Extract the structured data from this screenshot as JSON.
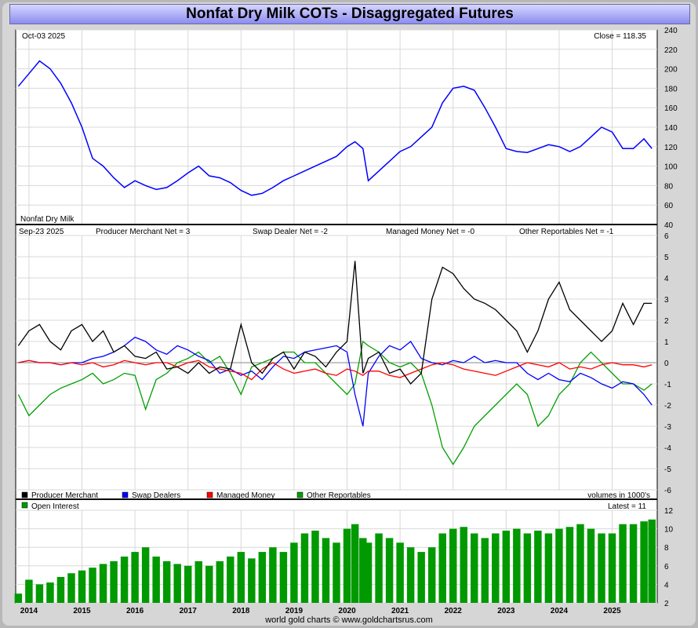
{
  "title": "Nonfat Dry Milk COTs - Disaggregated Futures",
  "footer": "world gold charts © www.goldchartsrus.com",
  "x_axis_years": [
    "2014",
    "2015",
    "2016",
    "2017",
    "2018",
    "2019",
    "2020",
    "2021",
    "2022",
    "2023",
    "2024",
    "2025"
  ],
  "colors": {
    "price": "#0000ff",
    "producer": "#000000",
    "swap": "#0000ff",
    "managed": "#ff0000",
    "other": "#00a000",
    "oi": "#009900"
  },
  "chart_data": [
    {
      "type": "line",
      "name": "price",
      "date_label": "Oct-03  2025",
      "close_label": "Close = 118.35",
      "series_label": "Nonfat Dry Milk",
      "ylim": [
        40,
        240
      ],
      "yticks": [
        40,
        60,
        80,
        100,
        120,
        140,
        160,
        180,
        200,
        220,
        240
      ],
      "x": [
        2013.8,
        2014.0,
        2014.2,
        2014.4,
        2014.6,
        2014.8,
        2015.0,
        2015.2,
        2015.4,
        2015.6,
        2015.8,
        2016.0,
        2016.2,
        2016.4,
        2016.6,
        2016.8,
        2017.0,
        2017.2,
        2017.4,
        2017.6,
        2017.8,
        2018.0,
        2018.2,
        2018.4,
        2018.6,
        2018.8,
        2019.0,
        2019.2,
        2019.4,
        2019.6,
        2019.8,
        2020.0,
        2020.15,
        2020.3,
        2020.4,
        2020.6,
        2020.8,
        2021.0,
        2021.2,
        2021.4,
        2021.6,
        2021.8,
        2022.0,
        2022.2,
        2022.4,
        2022.6,
        2022.8,
        2023.0,
        2023.2,
        2023.4,
        2023.6,
        2023.8,
        2024.0,
        2024.2,
        2024.4,
        2024.6,
        2024.8,
        2025.0,
        2025.2,
        2025.4,
        2025.6,
        2025.75
      ],
      "values": [
        182,
        195,
        208,
        200,
        185,
        165,
        140,
        108,
        100,
        88,
        78,
        85,
        80,
        76,
        78,
        85,
        93,
        100,
        90,
        88,
        83,
        75,
        70,
        72,
        78,
        85,
        90,
        95,
        100,
        105,
        110,
        120,
        125,
        118,
        85,
        95,
        105,
        115,
        120,
        130,
        140,
        165,
        180,
        182,
        178,
        160,
        140,
        118,
        115,
        114,
        118,
        122,
        120,
        115,
        120,
        130,
        140,
        135,
        118,
        118,
        128,
        118
      ]
    },
    {
      "type": "line",
      "name": "cot",
      "date_label": "Sep-23  2025",
      "labels": {
        "producer": "Producer Merchant Net = 3",
        "swap": "Swap Dealer Net = -2",
        "managed": "Managed Money Net = -0",
        "other": "Other Reportables Net = -1"
      },
      "ylim": [
        -6,
        6
      ],
      "yticks": [
        -6,
        -5,
        -4,
        -3,
        -2,
        -1,
        0,
        1,
        2,
        3,
        4,
        5,
        6
      ],
      "legend": [
        "Producer Merchant",
        "Swap Dealers",
        "Managed Money",
        "Other Reportables"
      ],
      "volumes_note": "volumes in 1000's",
      "x": [
        2013.8,
        2014.0,
        2014.2,
        2014.4,
        2014.6,
        2014.8,
        2015.0,
        2015.2,
        2015.4,
        2015.6,
        2015.8,
        2016.0,
        2016.2,
        2016.4,
        2016.6,
        2016.8,
        2017.0,
        2017.2,
        2017.4,
        2017.6,
        2017.8,
        2018.0,
        2018.2,
        2018.4,
        2018.6,
        2018.8,
        2019.0,
        2019.2,
        2019.4,
        2019.6,
        2019.8,
        2020.0,
        2020.15,
        2020.3,
        2020.4,
        2020.6,
        2020.8,
        2021.0,
        2021.2,
        2021.4,
        2021.6,
        2021.8,
        2022.0,
        2022.2,
        2022.4,
        2022.6,
        2022.8,
        2023.0,
        2023.2,
        2023.4,
        2023.6,
        2023.8,
        2024.0,
        2024.2,
        2024.4,
        2024.6,
        2024.8,
        2025.0,
        2025.2,
        2025.4,
        2025.6,
        2025.75
      ],
      "series": [
        {
          "name": "Producer Merchant",
          "values": [
            0.8,
            1.5,
            1.8,
            1.0,
            0.6,
            1.5,
            1.8,
            1.0,
            1.5,
            0.5,
            0.8,
            0.3,
            0.2,
            0.5,
            -0.3,
            -0.2,
            -0.5,
            0.0,
            -0.5,
            -0.2,
            -0.3,
            1.8,
            0.0,
            -0.5,
            0.2,
            0.5,
            -0.3,
            0.5,
            0.3,
            -0.2,
            0.5,
            1.0,
            4.8,
            -0.5,
            0.2,
            0.5,
            -0.5,
            -0.3,
            -1.0,
            -0.5,
            3.0,
            4.5,
            4.2,
            3.5,
            3.0,
            2.8,
            2.5,
            2.0,
            1.5,
            0.5,
            1.5,
            3.0,
            3.8,
            2.5,
            2.0,
            1.5,
            1.0,
            1.5,
            2.8,
            1.8,
            2.8,
            2.8
          ]
        },
        {
          "name": "Swap Dealers",
          "values": [
            0.0,
            0.1,
            0.0,
            0.0,
            -0.1,
            0.0,
            0.0,
            0.2,
            0.3,
            0.5,
            0.8,
            1.2,
            1.0,
            0.6,
            0.4,
            0.8,
            0.6,
            0.3,
            0.1,
            -0.5,
            -0.3,
            -0.6,
            -0.4,
            -0.8,
            -0.2,
            0.3,
            0.2,
            0.5,
            0.6,
            0.7,
            0.8,
            0.5,
            -1.5,
            -3.0,
            -0.5,
            0.3,
            0.8,
            0.6,
            1.0,
            0.2,
            0.0,
            -0.1,
            0.1,
            0.0,
            0.3,
            0.0,
            0.1,
            0.0,
            0.0,
            -0.5,
            -0.8,
            -0.5,
            -0.8,
            -0.9,
            -0.5,
            -0.7,
            -1.0,
            -1.2,
            -0.9,
            -1.0,
            -1.5,
            -2.0
          ]
        },
        {
          "name": "Managed Money",
          "values": [
            0.0,
            0.1,
            0.0,
            0.0,
            -0.1,
            0.0,
            -0.1,
            0.0,
            -0.2,
            -0.1,
            0.1,
            0.0,
            -0.1,
            0.0,
            0.0,
            -0.2,
            0.0,
            0.1,
            -0.2,
            -0.3,
            -0.4,
            -0.5,
            -0.8,
            -0.3,
            0.0,
            -0.3,
            -0.5,
            -0.4,
            -0.3,
            -0.5,
            -0.6,
            -0.3,
            -0.4,
            -0.6,
            -0.4,
            -0.4,
            -0.6,
            -0.7,
            -0.5,
            -0.3,
            -0.1,
            0.0,
            -0.1,
            -0.3,
            -0.4,
            -0.5,
            -0.6,
            -0.4,
            -0.2,
            0.0,
            -0.1,
            -0.2,
            0.0,
            -0.3,
            -0.2,
            -0.3,
            -0.1,
            0.0,
            -0.1,
            -0.1,
            -0.2,
            -0.1
          ]
        },
        {
          "name": "Other Reportables",
          "values": [
            -1.5,
            -2.5,
            -2.0,
            -1.5,
            -1.2,
            -1.0,
            -0.8,
            -0.5,
            -1.0,
            -0.8,
            -0.5,
            -0.6,
            -2.2,
            -0.8,
            -0.5,
            0.0,
            0.2,
            0.5,
            0.0,
            0.3,
            -0.5,
            -1.5,
            -0.2,
            0.0,
            0.2,
            0.5,
            0.5,
            0.0,
            0.0,
            -0.5,
            -1.0,
            -1.5,
            -1.0,
            1.0,
            0.8,
            0.5,
            0.0,
            -0.2,
            0.0,
            -0.5,
            -2.0,
            -4.0,
            -4.8,
            -4.0,
            -3.0,
            -2.5,
            -2.0,
            -1.5,
            -1.0,
            -1.5,
            -3.0,
            -2.5,
            -1.5,
            -1.0,
            0.0,
            0.5,
            0.0,
            -0.5,
            -1.0,
            -1.0,
            -1.3,
            -1.0
          ]
        }
      ]
    },
    {
      "type": "bar",
      "name": "open_interest",
      "legend": "Open Interest",
      "latest_label": "Latest = 11",
      "ylim": [
        2,
        12
      ],
      "yticks": [
        2,
        4,
        6,
        8,
        10,
        12
      ],
      "x": [
        2013.8,
        2014.0,
        2014.2,
        2014.4,
        2014.6,
        2014.8,
        2015.0,
        2015.2,
        2015.4,
        2015.6,
        2015.8,
        2016.0,
        2016.2,
        2016.4,
        2016.6,
        2016.8,
        2017.0,
        2017.2,
        2017.4,
        2017.6,
        2017.8,
        2018.0,
        2018.2,
        2018.4,
        2018.6,
        2018.8,
        2019.0,
        2019.2,
        2019.4,
        2019.6,
        2019.8,
        2020.0,
        2020.15,
        2020.3,
        2020.4,
        2020.6,
        2020.8,
        2021.0,
        2021.2,
        2021.4,
        2021.6,
        2021.8,
        2022.0,
        2022.2,
        2022.4,
        2022.6,
        2022.8,
        2023.0,
        2023.2,
        2023.4,
        2023.6,
        2023.8,
        2024.0,
        2024.2,
        2024.4,
        2024.6,
        2024.8,
        2025.0,
        2025.2,
        2025.4,
        2025.6,
        2025.75
      ],
      "values": [
        3.0,
        4.5,
        4.0,
        4.2,
        4.8,
        5.2,
        5.5,
        5.8,
        6.2,
        6.5,
        7.0,
        7.5,
        8.0,
        7.0,
        6.5,
        6.2,
        6.0,
        6.5,
        6.0,
        6.5,
        7.0,
        7.5,
        6.8,
        7.5,
        8.0,
        7.5,
        8.5,
        9.5,
        9.8,
        9.0,
        8.5,
        10.0,
        10.5,
        9.0,
        8.5,
        9.5,
        9.0,
        8.5,
        8.0,
        7.5,
        8.0,
        9.5,
        10.0,
        10.2,
        9.5,
        9.0,
        9.5,
        9.8,
        10.0,
        9.5,
        9.8,
        9.5,
        10.0,
        10.2,
        10.5,
        10.0,
        9.5,
        9.5,
        10.5,
        10.5,
        10.8,
        11.0
      ]
    }
  ]
}
